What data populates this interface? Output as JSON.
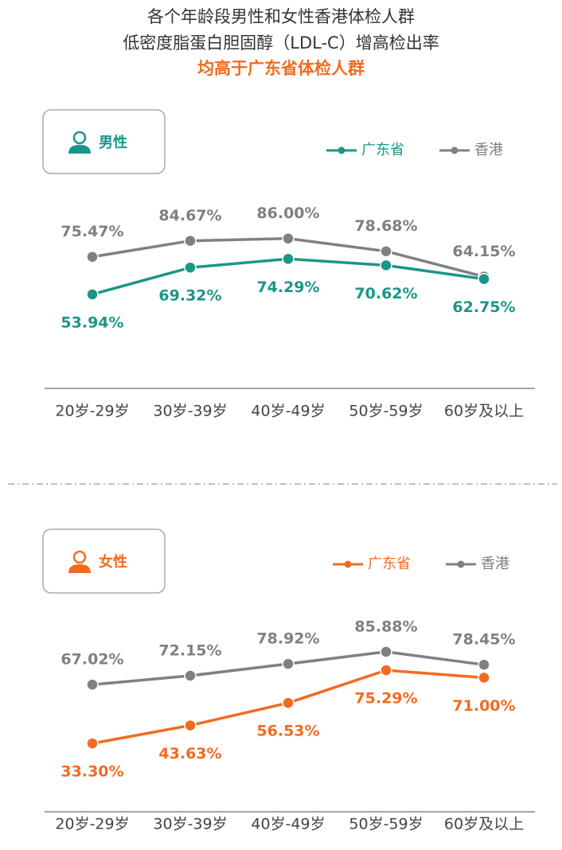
{
  "header": {
    "lines": [
      "各个年龄段男性和女性香港体检人群",
      "低密度脂蛋白胆固醇（LDL-C）增高检出率",
      "均高于广东省体检人群"
    ]
  },
  "chart_data": [
    {
      "type": "line",
      "panel_label": "男性",
      "categories": [
        "20岁-29岁",
        "30岁-39岁",
        "40岁-49岁",
        "50岁-59岁",
        "60岁及以上"
      ],
      "ylim": [
        0,
        100
      ],
      "series": [
        {
          "name": "广东省",
          "color": "#1a9688",
          "values": [
            53.94,
            69.32,
            74.29,
            70.62,
            62.75
          ],
          "value_labels": [
            "53.94%",
            "69.32%",
            "74.29%",
            "70.62%",
            "62.75%"
          ]
        },
        {
          "name": "香港",
          "color": "#808080",
          "values": [
            75.47,
            84.67,
            86.0,
            78.68,
            64.15
          ],
          "value_labels": [
            "75.47%",
            "84.67%",
            "86.00%",
            "78.68%",
            "64.15%"
          ]
        }
      ]
    },
    {
      "type": "line",
      "panel_label": "女性",
      "categories": [
        "20岁-29岁",
        "30岁-39岁",
        "40岁-49岁",
        "50岁-59岁",
        "60岁及以上"
      ],
      "ylim": [
        0,
        100
      ],
      "series": [
        {
          "name": "广东省",
          "color": "#f26b21",
          "values": [
            33.3,
            43.63,
            56.53,
            75.29,
            71.0
          ],
          "value_labels": [
            "33.30%",
            "43.63%",
            "56.53%",
            "75.29%",
            "71.00%"
          ]
        },
        {
          "name": "香港",
          "color": "#808080",
          "values": [
            67.02,
            72.15,
            78.92,
            85.88,
            78.45
          ],
          "value_labels": [
            "67.02%",
            "72.15%",
            "78.92%",
            "85.88%",
            "78.45%"
          ]
        }
      ]
    }
  ]
}
